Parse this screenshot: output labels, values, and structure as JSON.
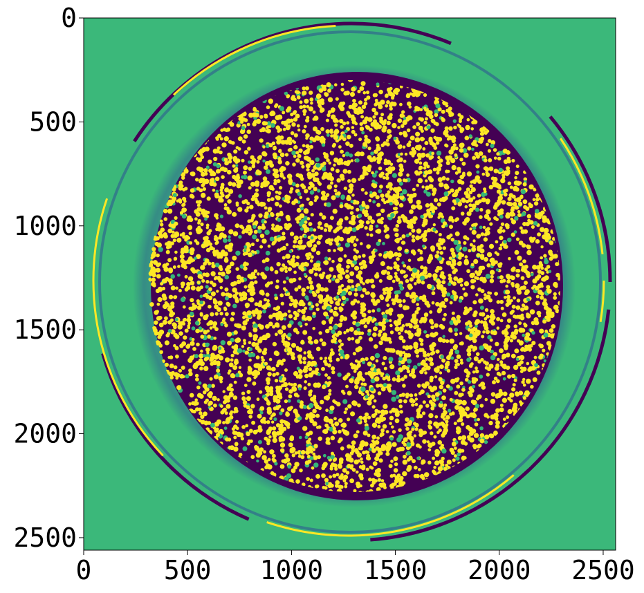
{
  "figure": {
    "colors": {
      "background_green": "#3bb87a",
      "dark_purple": "#440154",
      "teal_blue": "#31688e",
      "yellow": "#fde725",
      "light_green": "#35b779"
    },
    "x_axis": {
      "range": [
        0,
        2560
      ],
      "ticks": [
        0,
        500,
        1000,
        1500,
        2000,
        2500
      ],
      "tick_labels": [
        "0",
        "500",
        "1000",
        "1500",
        "2000",
        "2500"
      ]
    },
    "y_axis": {
      "range": [
        0,
        2560
      ],
      "inverted": true,
      "ticks": [
        0,
        500,
        1000,
        1500,
        2000,
        2500
      ],
      "tick_labels": [
        "0",
        "500",
        "1000",
        "1500",
        "2000",
        "2500"
      ]
    }
  }
}
